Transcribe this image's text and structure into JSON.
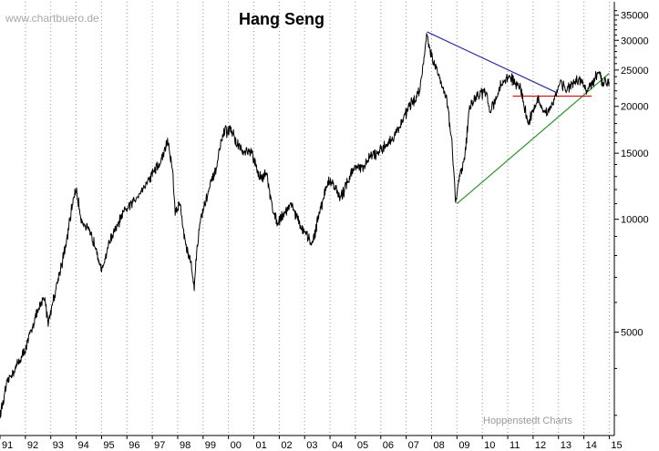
{
  "chart_data": {
    "type": "line",
    "title": "Hang Seng",
    "watermark": "www.chartbuero.de",
    "credit": "Hoppenstedt Charts",
    "xlabel": "",
    "ylabel": "",
    "y_scale": "log",
    "xlim": [
      1991.0,
      2015.2
    ],
    "ylim": [
      2650,
      38000
    ],
    "grid": true,
    "x_tick_labels": [
      {
        "year": 1991,
        "label": "91"
      },
      {
        "year": 1992,
        "label": "92"
      },
      {
        "year": 1993,
        "label": "93"
      },
      {
        "year": 1994,
        "label": "94"
      },
      {
        "year": 1995,
        "label": "95"
      },
      {
        "year": 1996,
        "label": "96"
      },
      {
        "year": 1997,
        "label": "97"
      },
      {
        "year": 1998,
        "label": "98"
      },
      {
        "year": 1999,
        "label": "99"
      },
      {
        "year": 2000,
        "label": "00"
      },
      {
        "year": 2001,
        "label": "01"
      },
      {
        "year": 2002,
        "label": "02"
      },
      {
        "year": 2003,
        "label": "03"
      },
      {
        "year": 2004,
        "label": "04"
      },
      {
        "year": 2005,
        "label": "05"
      },
      {
        "year": 2006,
        "label": "06"
      },
      {
        "year": 2007,
        "label": "07"
      },
      {
        "year": 2008,
        "label": "08"
      },
      {
        "year": 2009,
        "label": "09"
      },
      {
        "year": 2010,
        "label": "10"
      },
      {
        "year": 2011,
        "label": "11"
      },
      {
        "year": 2012,
        "label": "12"
      },
      {
        "year": 2013,
        "label": "13"
      },
      {
        "year": 2014,
        "label": "14"
      },
      {
        "year": 2015,
        "label": "15"
      }
    ],
    "y_ticks": [
      5000,
      10000,
      15000,
      20000,
      25000,
      30000,
      35000
    ],
    "y_tick_labels": [
      "5000",
      "10000",
      "15000",
      "20000",
      "25000",
      "30000",
      "35000"
    ],
    "series": [
      {
        "color": "#000000",
        "x": [
          1991.0,
          1991.3,
          1991.6,
          1992.0,
          1992.4,
          1992.75,
          1992.9,
          1993.3,
          1993.6,
          1993.9,
          1994.0,
          1994.2,
          1994.5,
          1994.8,
          1995.0,
          1995.3,
          1995.6,
          1995.9,
          1996.2,
          1996.5,
          1996.8,
          1997.0,
          1997.3,
          1997.6,
          1997.8,
          1997.9,
          1998.1,
          1998.3,
          1998.5,
          1998.65,
          1998.75,
          1998.9,
          1999.2,
          1999.5,
          1999.8,
          2000.1,
          2000.3,
          2000.6,
          2000.9,
          2001.2,
          2001.5,
          2001.7,
          2001.9,
          2002.2,
          2002.5,
          2002.8,
          2003.0,
          2003.3,
          2003.6,
          2003.9,
          2004.1,
          2004.4,
          2004.7,
          2005.0,
          2005.3,
          2005.6,
          2005.9,
          2006.2,
          2006.5,
          2006.8,
          2007.1,
          2007.4,
          2007.6,
          2007.82,
          2007.95,
          2008.2,
          2008.4,
          2008.6,
          2008.8,
          2008.95,
          2009.1,
          2009.3,
          2009.5,
          2009.7,
          2009.9,
          2010.1,
          2010.3,
          2010.6,
          2010.85,
          2011.1,
          2011.3,
          2011.5,
          2011.65,
          2011.8,
          2012.0,
          2012.2,
          2012.4,
          2012.6,
          2012.9,
          2013.1,
          2013.3,
          2013.6,
          2013.9,
          2014.1,
          2014.3,
          2014.55,
          2014.75,
          2014.95,
          2015.0
        ],
        "y": [
          3000,
          3700,
          4000,
          4500,
          5500,
          6200,
          5300,
          7000,
          8500,
          11500,
          12000,
          10000,
          9300,
          8400,
          7200,
          8700,
          9500,
          10500,
          11000,
          11800,
          12500,
          13300,
          14000,
          16200,
          13500,
          10500,
          11000,
          8600,
          7800,
          6600,
          8200,
          10000,
          11800,
          13500,
          17000,
          17400,
          16000,
          15000,
          15100,
          13000,
          13200,
          11000,
          9800,
          10400,
          11000,
          9700,
          9200,
          8600,
          10500,
          12500,
          12600,
          11300,
          12700,
          13900,
          13600,
          14800,
          14900,
          15800,
          16500,
          18000,
          20000,
          21000,
          23500,
          31600,
          28000,
          25000,
          23000,
          21000,
          16000,
          11000,
          13000,
          14500,
          20000,
          21000,
          21500,
          22000,
          19500,
          21500,
          23500,
          24000,
          23000,
          22500,
          20000,
          18000,
          19500,
          21000,
          19000,
          19500,
          21500,
          23500,
          22000,
          23000,
          23500,
          22000,
          22700,
          24500,
          23000,
          23500,
          23200
        ]
      }
    ],
    "trendlines": [
      {
        "color": "#2a2aaa",
        "x": [
          2007.82,
          2012.9
        ],
        "y": [
          31600,
          21800
        ]
      },
      {
        "color": "#1f9a1f",
        "x": [
          2009.0,
          2015.0
        ],
        "y": [
          11000,
          24500
        ]
      },
      {
        "color": "#d01818",
        "x": [
          2011.2,
          2014.3
        ],
        "y": [
          21300,
          21300
        ]
      }
    ]
  }
}
